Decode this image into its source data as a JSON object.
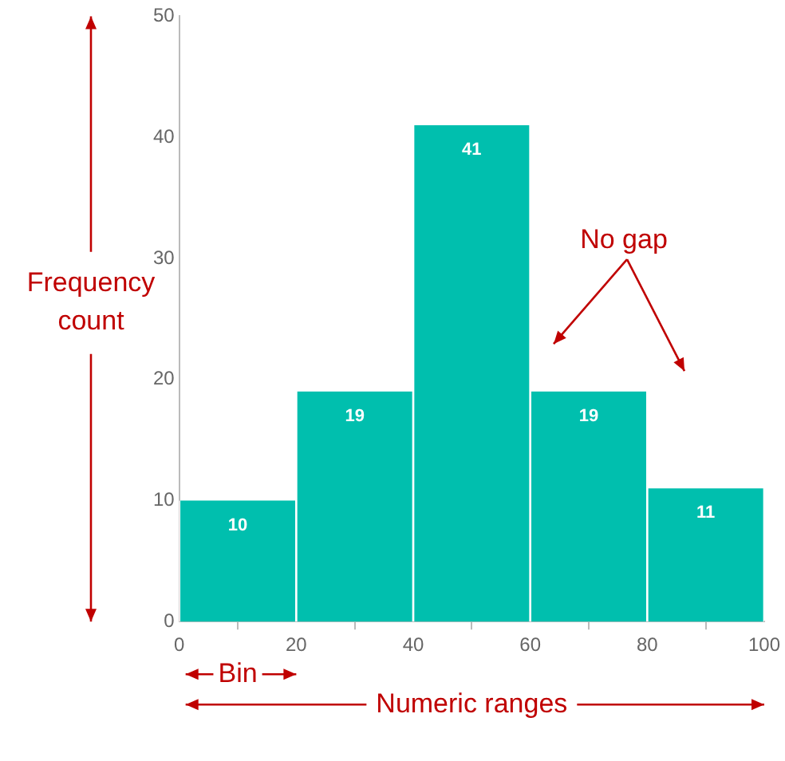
{
  "chart_data": {
    "type": "histogram",
    "bins": [
      0,
      20,
      40,
      60,
      80,
      100
    ],
    "values": [
      10,
      19,
      41,
      19,
      11
    ],
    "color": "#00bfae",
    "data_labels": true,
    "xlim": [
      0,
      100
    ],
    "xticks": [
      0,
      20,
      40,
      60,
      80,
      100
    ],
    "ylim": [
      0,
      50
    ],
    "yticks": [
      0,
      10,
      20,
      30,
      40,
      50
    ],
    "grid": false,
    "legend": false,
    "xlabel": "Numeric ranges",
    "ylabel": "Frequency count",
    "annotations": [
      "Bin",
      "No gap"
    ]
  }
}
